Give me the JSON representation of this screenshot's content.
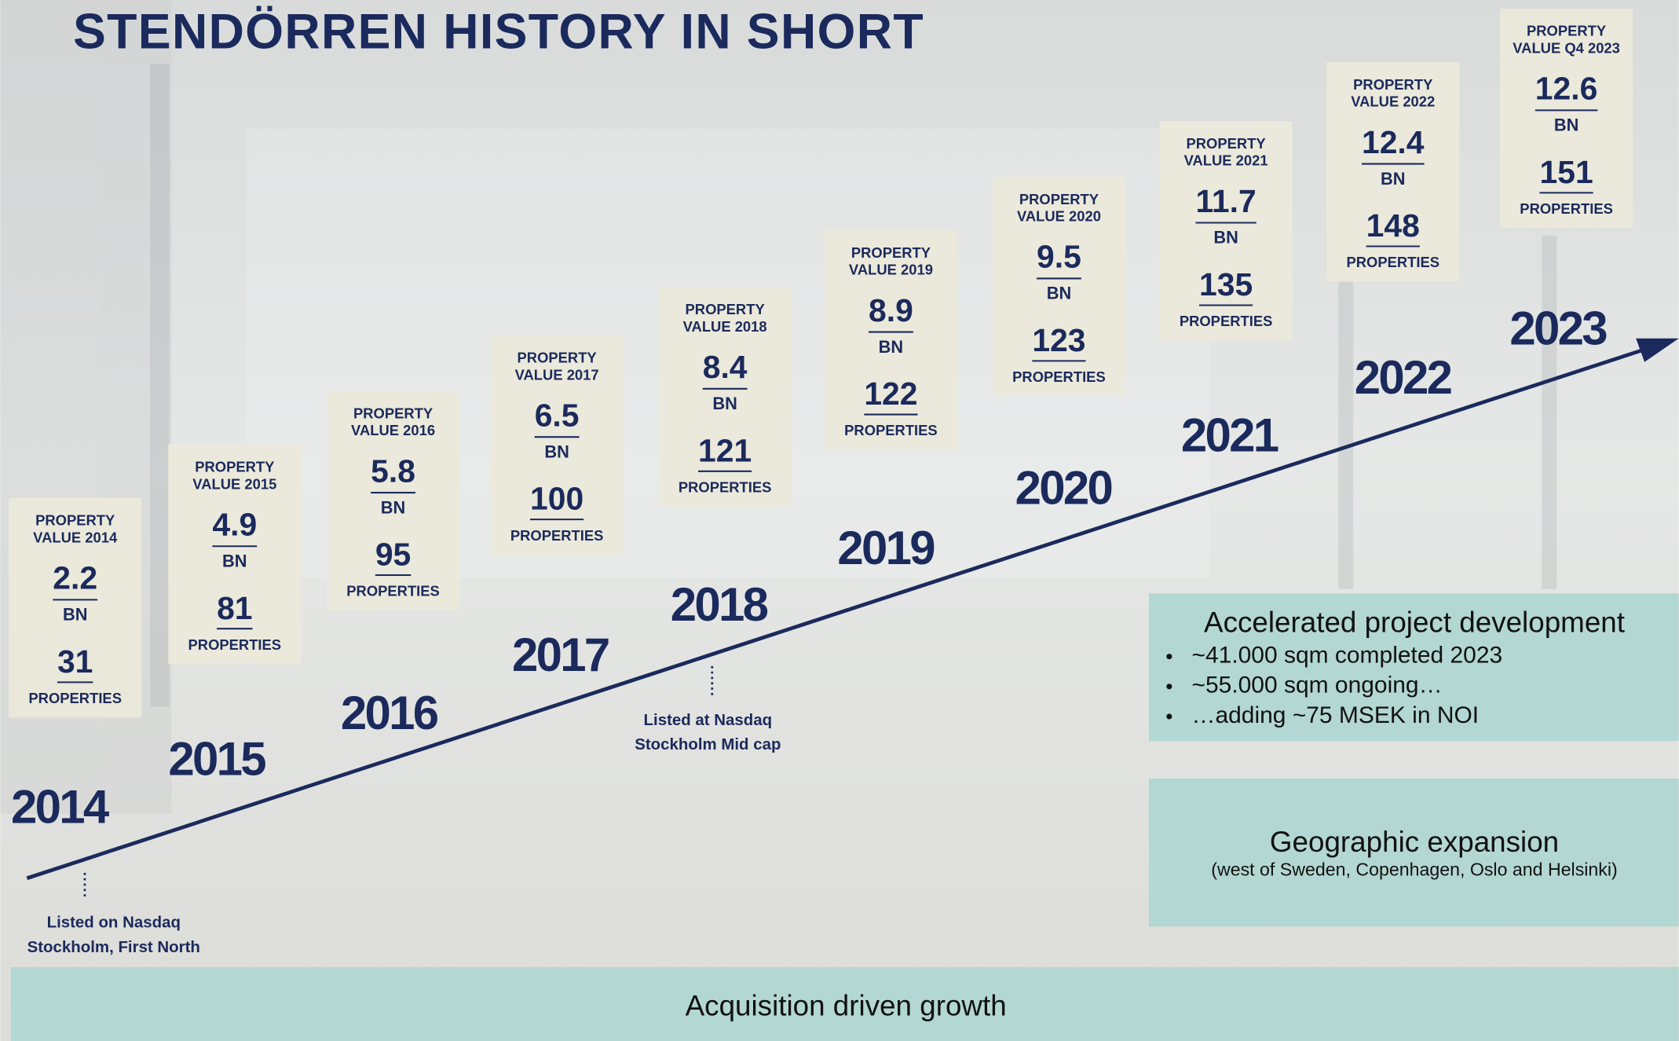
{
  "title": "STENDÖRREN HISTORY IN SHORT",
  "milestones": [
    {
      "label_lines": [
        "PROPERTY",
        "VALUE 2014"
      ],
      "value": "2.2",
      "unit": "BN",
      "properties": "31",
      "properties_label": "PROPERTIES",
      "year": "2014"
    },
    {
      "label_lines": [
        "PROPERTY",
        "VALUE 2015"
      ],
      "value": "4.9",
      "unit": "BN",
      "properties": "81",
      "properties_label": "PROPERTIES",
      "year": "2015"
    },
    {
      "label_lines": [
        "PROPERTY",
        "VALUE 2016"
      ],
      "value": "5.8",
      "unit": "BN",
      "properties": "95",
      "properties_label": "PROPERTIES",
      "year": "2016"
    },
    {
      "label_lines": [
        "PROPERTY",
        "VALUE 2017"
      ],
      "value": "6.5",
      "unit": "BN",
      "properties": "100",
      "properties_label": "PROPERTIES",
      "year": "2017"
    },
    {
      "label_lines": [
        "PROPERTY",
        "VALUE 2018"
      ],
      "value": "8.4",
      "unit": "BN",
      "properties": "121",
      "properties_label": "PROPERTIES",
      "year": "2018"
    },
    {
      "label_lines": [
        "PROPERTY",
        "VALUE 2019"
      ],
      "value": "8.9",
      "unit": "BN",
      "properties": "122",
      "properties_label": "PROPERTIES",
      "year": "2019"
    },
    {
      "label_lines": [
        "PROPERTY",
        "VALUE 2020"
      ],
      "value": "9.5",
      "unit": "BN",
      "properties": "123",
      "properties_label": "PROPERTIES",
      "year": "2020"
    },
    {
      "label_lines": [
        "PROPERTY",
        "VALUE 2021"
      ],
      "value": "11.7",
      "unit": "BN",
      "properties": "135",
      "properties_label": "PROPERTIES",
      "year": "2021"
    },
    {
      "label_lines": [
        "PROPERTY",
        "VALUE 2022"
      ],
      "value": "12.4",
      "unit": "BN",
      "properties": "148",
      "properties_label": "PROPERTIES",
      "year": "2022"
    },
    {
      "label_lines": [
        "PROPERTY",
        "VALUE Q4 2023"
      ],
      "value": "12.6",
      "unit": "BN",
      "properties": "151",
      "properties_label": "PROPERTIES",
      "year": "2023"
    }
  ],
  "annotations": [
    {
      "lines": [
        "Listed on Nasdaq",
        "Stockholm, First North"
      ]
    },
    {
      "lines": [
        "Listed at Nasdaq",
        "Stockholm Mid cap"
      ]
    }
  ],
  "panels": {
    "project": {
      "heading": "Accelerated project development",
      "bullets": [
        "~41.000 sqm completed 2023",
        "~55.000 sqm ongoing…",
        "…adding ~75 MSEK in NOI"
      ]
    },
    "geographic": {
      "heading": "Geographic expansion",
      "subtext": "(west of Sweden, Copenhagen, Oslo and Helsinki)"
    },
    "bottom": {
      "text": "Acquisition driven growth"
    }
  }
}
